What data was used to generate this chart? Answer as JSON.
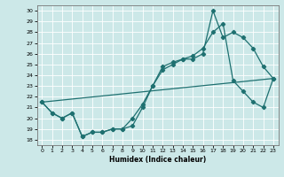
{
  "xlabel": "Humidex (Indice chaleur)",
  "xlim": [
    -0.5,
    23.5
  ],
  "ylim": [
    17.5,
    30.5
  ],
  "yticks": [
    18,
    19,
    20,
    21,
    22,
    23,
    24,
    25,
    26,
    27,
    28,
    29,
    30
  ],
  "xticks": [
    0,
    1,
    2,
    3,
    4,
    5,
    6,
    7,
    8,
    9,
    10,
    11,
    12,
    13,
    14,
    15,
    16,
    17,
    18,
    19,
    20,
    21,
    22,
    23
  ],
  "bg_color": "#cce8e8",
  "line_color": "#1e7070",
  "series1_x": [
    0,
    1,
    2,
    3,
    4,
    5,
    6,
    7,
    8,
    9,
    10,
    11,
    12,
    13,
    14,
    15,
    16,
    17,
    18,
    19,
    20,
    21,
    22,
    23
  ],
  "series1_y": [
    21.5,
    20.5,
    20.0,
    20.5,
    18.3,
    18.7,
    18.7,
    19.0,
    19.0,
    19.3,
    21.0,
    23.0,
    24.5,
    25.0,
    25.5,
    25.5,
    26.0,
    30.0,
    27.5,
    28.0,
    27.5,
    26.5,
    24.8,
    23.7
  ],
  "series2_x": [
    0,
    1,
    2,
    3,
    4,
    5,
    6,
    7,
    8,
    9,
    10,
    11,
    12,
    13,
    14,
    15,
    16,
    17,
    18,
    19,
    20,
    21,
    22,
    23
  ],
  "series2_y": [
    21.5,
    20.5,
    20.0,
    20.5,
    18.3,
    18.7,
    18.7,
    19.0,
    19.0,
    20.0,
    21.3,
    23.0,
    24.8,
    25.2,
    25.5,
    25.8,
    26.5,
    28.0,
    28.8,
    23.5,
    22.5,
    21.5,
    21.0,
    23.7
  ],
  "series3_x": [
    0,
    23
  ],
  "series3_y": [
    21.5,
    23.7
  ]
}
